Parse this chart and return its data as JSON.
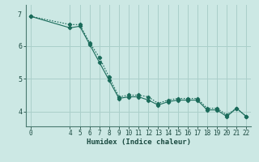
{
  "xlabel": "Humidex (Indice chaleur)",
  "bg_color": "#cce8e4",
  "line_color": "#1a6b5a",
  "grid_color": "#aacfca",
  "line1_x": [
    0,
    4,
    5,
    6,
    7,
    8,
    9,
    10,
    11,
    12,
    13,
    14,
    15,
    16,
    17,
    18,
    19,
    20,
    21,
    22
  ],
  "line1_y": [
    6.9,
    6.55,
    6.6,
    6.05,
    5.5,
    4.95,
    4.4,
    4.45,
    4.45,
    4.35,
    4.2,
    4.3,
    4.35,
    4.35,
    4.35,
    4.05,
    4.05,
    3.85,
    4.1,
    3.85
  ],
  "line2_x": [
    0,
    4,
    5,
    6,
    7,
    8,
    9,
    10,
    11,
    12,
    13,
    14,
    15,
    16,
    17,
    18,
    19,
    20,
    21,
    22
  ],
  "line2_y": [
    6.9,
    6.65,
    6.65,
    6.1,
    5.65,
    5.05,
    4.45,
    4.5,
    4.5,
    4.45,
    4.25,
    4.35,
    4.4,
    4.4,
    4.4,
    4.1,
    4.1,
    3.9,
    4.1,
    3.85
  ],
  "xlim": [
    -0.5,
    22.5
  ],
  "ylim": [
    3.55,
    7.25
  ],
  "yticks": [
    4,
    5,
    6
  ],
  "ytick_labels": [
    "4",
    "5",
    "6"
  ],
  "xticks": [
    0,
    4,
    5,
    6,
    7,
    8,
    9,
    10,
    11,
    12,
    13,
    14,
    15,
    16,
    17,
    18,
    19,
    20,
    21,
    22
  ],
  "xlabel_fontsize": 6.5,
  "tick_fontsize": 5.5,
  "marker_size": 2.2
}
